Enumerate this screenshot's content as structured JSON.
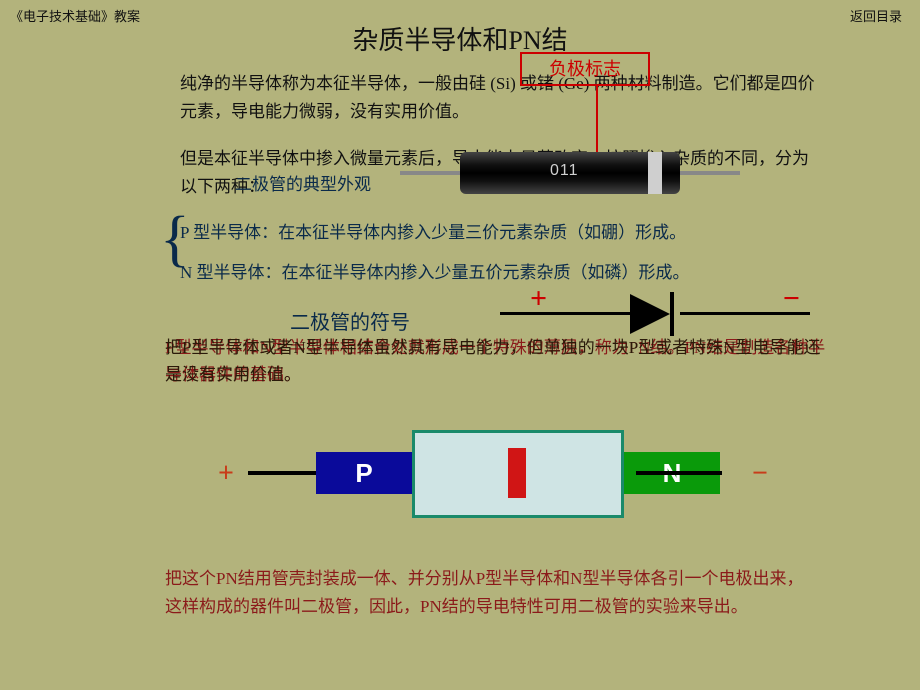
{
  "header": {
    "left": "《电子技术基础》教案",
    "right": "返回目录"
  },
  "title": "杂质半导体和PN结",
  "paragraph1": "纯净的半导体称为本征半导体，一般由硅 (Si) 或锗 (Ge) 两种材料制造。它们都是四价元素，导电能力微弱，没有实用价值。",
  "paragraph2": "但是本征半导体中掺入微量元素后，导电能力显著改变，按照掺入杂质的不同，分为以下两种：",
  "overlay_label": "二极管的典型外观",
  "p_type": "P 型半导体：在本征半导体内掺入少量三价元素杂质（如硼）形成。",
  "n_type": "N 型半导体：在本征半导体内掺入少量五价元素杂质（如磷）形成。",
  "symbol_label": "二极管的符号",
  "overlap_a": "把P型半导体或者N型半导体虽然具有导电能力，但单独的一块P型或者特殊N型电导能还是没有实用价值。",
  "overlap_b": "P型半导体和N型半导体相结合处就形成一个特殊的薄层，称为PN结。PN结是制造各种半导体器件的基础。",
  "callout": "负极标志",
  "diode_marking": "011",
  "pn": {
    "p_label": "P",
    "n_label": "N"
  },
  "symbol": {
    "plus": "+",
    "minus": "−"
  },
  "bottom_para": "把这个PN结用管壳封装成一体、并分别从P型半导体和N型半导体各引一个电极出来，这样构成的器件叫二极管，因此，PN结的导电特性可用二极管的实验来导出。",
  "colors": {
    "background": "#b3b37c",
    "red": "#c00",
    "darkred": "#8b1a1a",
    "blue": "#0a0a9a",
    "green": "#0a9a0a",
    "teal_border": "#1a8a6a",
    "pale_teal": "#cfe4e4",
    "mid_red": "#d01515"
  }
}
